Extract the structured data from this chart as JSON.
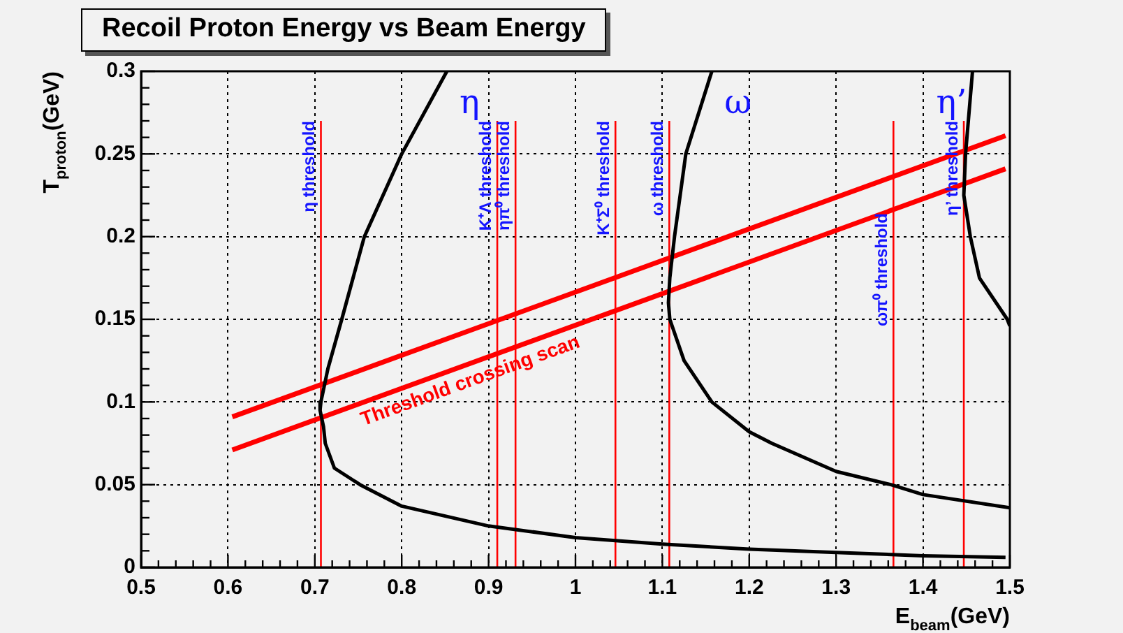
{
  "chart_data": {
    "type": "line",
    "title": "Recoil Proton Energy vs Beam Energy",
    "xlabel": "E$_{beam}$(GeV)",
    "ylabel": "T$_{proton}$(GeV)",
    "xlim": [
      0.5,
      1.5
    ],
    "ylim": [
      0,
      0.3
    ],
    "xticks": [
      0.5,
      {
        "value": 0.52,
        "label": null
      },
      {
        "value": 0.54,
        "label": null
      },
      {
        "value": 0.56,
        "label": null
      },
      {
        "value": 0.58,
        "label": null
      },
      0.6,
      {
        "value": 0.62,
        "label": null
      },
      {
        "value": 0.64,
        "label": null
      },
      {
        "value": 0.66,
        "label": null
      },
      {
        "value": 0.68,
        "label": null
      },
      0.7,
      {
        "value": 0.72,
        "label": null
      },
      {
        "value": 0.74,
        "label": null
      },
      {
        "value": 0.76,
        "label": null
      },
      {
        "value": 0.78,
        "label": null
      },
      0.8,
      {
        "value": 0.82,
        "label": null
      },
      {
        "value": 0.84,
        "label": null
      },
      {
        "value": 0.86,
        "label": null
      },
      {
        "value": 0.88,
        "label": null
      },
      0.9,
      {
        "value": 0.92,
        "label": null
      },
      {
        "value": 0.94,
        "label": null
      },
      {
        "value": 0.96,
        "label": null
      },
      {
        "value": 0.98,
        "label": null
      },
      1,
      {
        "value": 1.02,
        "label": null
      },
      {
        "value": 1.04,
        "label": null
      },
      {
        "value": 1.06,
        "label": null
      },
      {
        "value": 1.08,
        "label": null
      },
      1.1,
      {
        "value": 1.12,
        "label": null
      },
      {
        "value": 1.14,
        "label": null
      },
      {
        "value": 1.16,
        "label": null
      },
      {
        "value": 1.18,
        "label": null
      },
      1.2,
      {
        "value": 1.22,
        "label": null
      },
      {
        "value": 1.24,
        "label": null
      },
      {
        "value": 1.26,
        "label": null
      },
      {
        "value": 1.28,
        "label": null
      },
      1.3,
      {
        "value": 1.32,
        "label": null
      },
      {
        "value": 1.34,
        "label": null
      },
      {
        "value": 1.36,
        "label": null
      },
      {
        "value": 1.38,
        "label": null
      },
      1.4,
      {
        "value": 1.42,
        "label": null
      },
      {
        "value": 1.44,
        "label": null
      },
      {
        "value": 1.46,
        "label": null
      },
      {
        "value": 1.48,
        "label": null
      },
      1.5
    ],
    "yticks": [
      0,
      {
        "value": 0.01,
        "label": null
      },
      {
        "value": 0.02,
        "label": null
      },
      {
        "value": 0.03,
        "label": null
      },
      {
        "value": 0.04,
        "label": null
      },
      0.05,
      {
        "value": 0.06,
        "label": null
      },
      {
        "value": 0.07,
        "label": null
      },
      {
        "value": 0.08,
        "label": null
      },
      {
        "value": 0.09,
        "label": null
      },
      0.1,
      {
        "value": 0.11,
        "label": null
      },
      {
        "value": 0.12,
        "label": null
      },
      {
        "value": 0.13,
        "label": null
      },
      {
        "value": 0.14,
        "label": null
      },
      0.15,
      {
        "value": 0.16,
        "label": null
      },
      {
        "value": 0.17,
        "label": null
      },
      {
        "value": 0.18,
        "label": null
      },
      {
        "value": 0.19,
        "label": null
      },
      0.2,
      {
        "value": 0.21,
        "label": null
      },
      {
        "value": 0.22,
        "label": null
      },
      {
        "value": 0.23,
        "label": null
      },
      {
        "value": 0.24,
        "label": null
      },
      0.25,
      {
        "value": 0.26,
        "label": null
      },
      {
        "value": 0.27,
        "label": null
      },
      {
        "value": 0.28,
        "label": null
      },
      {
        "value": 0.29,
        "label": null
      },
      0.3
    ],
    "grid": true,
    "legend": false,
    "marker": "none",
    "series": [
      {
        "name": "η",
        "color": "#000000",
        "x": [
          0.852,
          0.8,
          0.757,
          0.731,
          0.715,
          0.707,
          0.706,
          0.71,
          0.712,
          0.7225,
          0.752,
          0.8,
          0.9,
          1.0,
          1.1,
          1.2,
          1.3,
          1.4,
          1.495
        ],
        "values": [
          0.3,
          0.25,
          0.2,
          0.15,
          0.12,
          0.1,
          0.095,
          0.085,
          0.075,
          0.06,
          0.05,
          0.037,
          0.025,
          0.018,
          0.014,
          0.011,
          0.009,
          0.007,
          0.006
        ]
      },
      {
        "name": "ω",
        "color": "#000000",
        "x": [
          1.157,
          1.127,
          1.114,
          1.1086,
          1.107,
          1.1086,
          1.125,
          1.157,
          1.2,
          1.226,
          1.3,
          1.363,
          1.4,
          1.5
        ],
        "values": [
          0.3,
          0.25,
          0.2,
          0.175,
          0.16,
          0.15,
          0.125,
          0.1,
          0.082,
          0.075,
          0.058,
          0.05,
          0.044,
          0.036
        ]
      },
      {
        "name": "η’",
        "color": "#000000",
        "x": [
          1.457,
          1.449,
          1.447,
          1.4545,
          1.465,
          1.497,
          1.5
        ],
        "values": [
          0.3,
          0.25,
          0.225,
          0.2,
          0.175,
          0.15,
          0.146
        ]
      },
      {
        "color": "#ff0000",
        "x": [
          0.605,
          1.495
        ],
        "values": [
          0.091,
          0.261
        ]
      },
      {
        "color": "#ff0000",
        "name": "Threshold crossing scan",
        "x": [
          0.605,
          1.495
        ],
        "values": [
          0.071,
          0.241
        ]
      },
      {
        "color": "#ff0000",
        "name": "η threshold",
        "x": [
          0.707,
          0.707
        ],
        "values": [
          0,
          0.27
        ]
      },
      {
        "color": "#ff0000",
        "name": "K⁺Λ threshold",
        "x": [
          0.91,
          0.91
        ],
        "values": [
          0,
          0.27
        ]
      },
      {
        "color": "#ff0000",
        "name": "ηπ⁰ threshold",
        "x": [
          0.931,
          0.931
        ],
        "values": [
          0,
          0.27
        ]
      },
      {
        "color": "#ff0000",
        "name": "K⁺Σ⁰ threshold",
        "x": [
          1.046,
          1.046
        ],
        "values": [
          0,
          0.27
        ]
      },
      {
        "color": "#ff0000",
        "name": "ω threshold",
        "x": [
          1.108,
          1.108
        ],
        "values": [
          0,
          0.27
        ]
      },
      {
        "color": "#ff0000",
        "name": "ωπ⁰ threshold",
        "x": [
          1.366,
          1.366
        ],
        "values": [
          0,
          0.27
        ]
      },
      {
        "color": "#ff0000",
        "name": "η’ threshold",
        "x": [
          1.447,
          1.447
        ],
        "values": [
          0,
          0.27
        ]
      }
    ]
  }
}
